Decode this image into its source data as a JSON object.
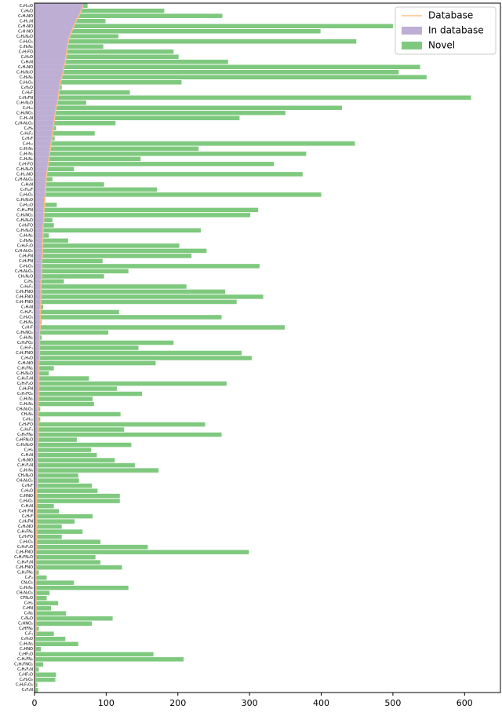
{
  "chart_data": {
    "type": "barh",
    "categories": [
      "C₄H₁₀O",
      "C₄H₈O",
      "C₃H₉NO",
      "C₄H₁₁N",
      "C₂H₇NO",
      "C₃H₇NO",
      "C₂H₆N₂O",
      "C₄H₆O₂",
      "C₃H₈N₂",
      "C₃H₇FO",
      "C₄H₆O",
      "C₄H₉N",
      "C₄H₉NO",
      "C₃H₈N₂O",
      "C₃H₆N₂",
      "C₃H₆O₂",
      "C₃H₆O",
      "C₄H₈F",
      "C₃H₉FN",
      "C₃H₇N₂O",
      "C₅H₁₀",
      "C₃H₆NO₂",
      "C₃H₁₁N",
      "C₂H₄N₂O₂",
      "C₄H₈",
      "C₄H₆F₂",
      "C₃H₇F",
      "C₄H₁₂",
      "C₃H₇N₃",
      "C₃H₇N₂",
      "C₂H₆N₂",
      "C₃H₇FO",
      "C₂H₅N₂O",
      "C₃H₁₁NO",
      "C₂H₇N₂O₂",
      "C₃H₉N",
      "C₅H₁₀F",
      "C₂H₄O₂",
      "C₂H₅N₃O",
      "C₄H₁₂O",
      "C₃H₁₀FN",
      "C₃H₉NO₂",
      "C₂H₆N₂O",
      "C₄H₉FO",
      "C₂H₇N₂O",
      "C₂H₄N₂",
      "C₃H₈N₂",
      "C₂H₆F₂O",
      "C₂H₇N₂O₂",
      "C₃H₉FN",
      "C₃H₅FN",
      "C₄H₆O₃",
      "C₂H₆N₂O₂",
      "CH₅N₂O",
      "C₄H₆",
      "C₄H₆F₂",
      "C₃H₆FNO",
      "C₂H₆FNO",
      "C₃H₇FNO",
      "C₃H₄N",
      "C₂H₆F₂",
      "C₂H₆O₃",
      "C₂H₅N₃",
      "C₃H₇F",
      "C₂H₅NO₂",
      "C₄H₄N₂",
      "C₂H₄FO₂",
      "C₃H₇F₃",
      "C₃H₃FNO",
      "C₂H₄O",
      "C₃H₅NO",
      "C₃H₅FN₂",
      "C₂H₅N₂O",
      "C₃H₆F₂N",
      "C₂H₇F₂O",
      "C₃H₆FN",
      "C₃H₇FO₂",
      "C₂H₅N₂",
      "C₂H₄N₄",
      "CH₆N₂O₂",
      "CH₃N₃",
      "C₄H₁₀",
      "C₂H₃FO",
      "C₃H₅F₃",
      "C₃H₅FN₂",
      "C₂HFN₂O",
      "C₂H₄N₂O",
      "C₃H₄",
      "C₂H₃N",
      "C₃H₆NO",
      "C₃H₇F₂N",
      "C₃H₇N₄",
      "CH₆N₂O",
      "CH₄N₂O₂",
      "C₃H₅F",
      "C₂H₃O",
      "C₄HNO",
      "C₂H₄O₂",
      "C₃H₃N",
      "C₄H₇FN",
      "C₂H₅F",
      "C₂H₆FN",
      "C₂H₆NO",
      "C₃H₄FN₂",
      "C₂H₇FO",
      "C₃H₅O₂",
      "C₂H₃F₂O",
      "C₂H₄FNO",
      "C₂H₅FN₂O",
      "C₂H₄F₂N",
      "C₂H₃FNO",
      "C₂H₃FN₂",
      "C₃F₂",
      "CN₂O₂",
      "C₂H₅N₂",
      "CH₅N₂O₂",
      "CFN₂O",
      "C₄H₂",
      "C₃HN",
      "C₄N₂",
      "C₃N₂O",
      "C₂HNO₂",
      "C₂HFN₂",
      "C₂F₃",
      "C₃H₃O",
      "C₃H₃N₃",
      "C₂HNO",
      "C₂HF₂O",
      "C₂H₆FN₂",
      "C₂H₅FNO₂",
      "C₂H₂F₂N",
      "C₂HF₂O",
      "C₂H₂O₂",
      "C₂H₂F₂O₂",
      "C₂F₂N"
    ],
    "series": [
      {
        "name": "In database",
        "color": "#beaed4",
        "values": [
          68,
          65,
          62,
          58,
          55,
          52,
          49,
          47,
          46,
          45,
          44,
          43,
          41,
          40,
          38,
          36,
          35,
          34,
          33,
          32,
          30,
          29,
          28,
          27,
          26,
          25,
          24,
          23,
          22,
          21,
          20,
          19,
          18,
          17,
          16,
          16,
          15,
          15,
          14,
          14,
          13,
          13,
          13,
          12,
          12,
          12,
          11,
          11,
          11,
          11,
          10,
          10,
          10,
          10,
          9,
          9,
          9,
          9,
          9,
          8,
          8,
          8,
          8,
          8,
          7,
          7,
          7,
          7,
          7,
          7,
          6,
          6,
          6,
          6,
          6,
          6,
          6,
          5,
          5,
          5,
          5,
          5,
          5,
          5,
          5,
          5,
          4,
          4,
          4,
          4,
          4,
          4,
          4,
          4,
          4,
          3,
          3,
          3,
          3,
          3,
          3,
          3,
          3,
          3,
          3,
          3,
          3,
          2,
          2,
          2,
          2,
          2,
          2,
          2,
          2,
          2,
          2,
          2,
          2,
          2,
          2,
          2,
          2,
          2,
          1,
          1,
          1,
          1,
          1,
          1,
          1,
          1,
          1,
          1,
          1
        ]
      },
      {
        "name": "Novel",
        "color": "#7fc97f",
        "values": [
          74,
          181,
          262,
          99,
          500,
          399,
          117,
          449,
          96,
          194,
          201,
          270,
          538,
          508,
          547,
          205,
          38,
          133,
          609,
          72,
          429,
          350,
          286,
          113,
          30,
          84,
          28,
          447,
          229,
          379,
          148,
          334,
          55,
          374,
          25,
          97,
          171,
          400,
          15,
          31,
          312,
          301,
          25,
          27,
          232,
          20,
          47,
          202,
          240,
          219,
          95,
          314,
          131,
          97,
          41,
          212,
          266,
          319,
          282,
          12,
          118,
          261,
          10,
          349,
          103,
          10,
          194,
          145,
          289,
          303,
          169,
          27,
          20,
          76,
          268,
          115,
          150,
          81,
          83,
          8,
          120,
          8,
          238,
          125,
          261,
          59,
          135,
          79,
          87,
          112,
          140,
          173,
          61,
          62,
          80,
          88,
          119,
          119,
          27,
          34,
          81,
          56,
          38,
          67,
          38,
          92,
          158,
          299,
          85,
          92,
          122,
          6,
          17,
          55,
          131,
          21,
          17,
          33,
          23,
          44,
          109,
          80,
          6,
          27,
          43,
          61,
          9,
          166,
          208,
          12,
          6,
          30,
          29,
          4,
          5
        ]
      }
    ],
    "line": {
      "name": "Database",
      "color": "#fdc086"
    },
    "xlim": [
      0,
      650
    ],
    "xticks": [
      0,
      100,
      200,
      300,
      400,
      500,
      600
    ],
    "legend": "upper right"
  }
}
